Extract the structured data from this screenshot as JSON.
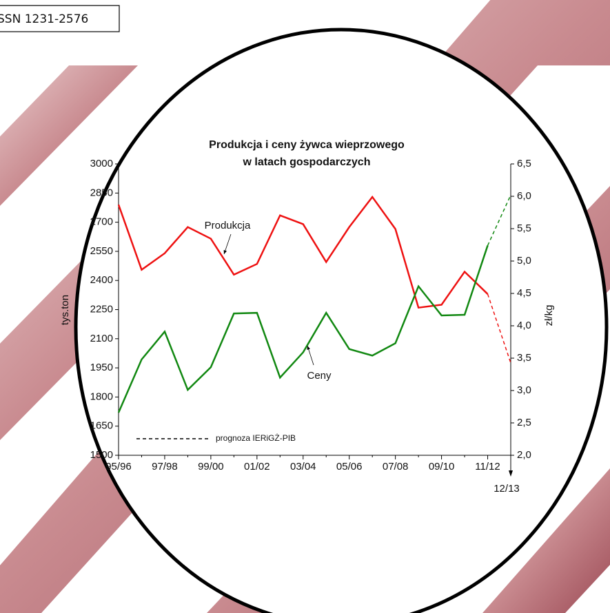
{
  "header": {
    "issn": "SSN 1231-2576"
  },
  "chart_data": {
    "type": "line",
    "title": [
      "Produkcja i ceny żywca wieprzowego",
      "w latach gospodarczych"
    ],
    "ylabel": "tys.ton",
    "y2label": "zł/kg",
    "categories": [
      "95/96",
      null,
      "97/98",
      null,
      "99/00",
      null,
      "01/02",
      null,
      "03/04",
      null,
      "05/06",
      null,
      "07/08",
      null,
      "09/10",
      null,
      "11/12",
      "12/13"
    ],
    "series": [
      {
        "name": "Produkcja",
        "color": "#ee1111",
        "values": [
          2790,
          2455,
          2540,
          2675,
          2615,
          2430,
          2485,
          2735,
          2690,
          2495,
          2675,
          2830,
          2665,
          2260,
          2275,
          2445,
          2330,
          1975
        ]
      },
      {
        "name": "Ceny",
        "color": "#118811",
        "axis": "y2",
        "values": [
          2.66,
          3.48,
          3.91,
          3.01,
          3.36,
          4.19,
          4.2,
          3.2,
          3.59,
          4.2,
          3.64,
          3.54,
          3.73,
          4.61,
          4.16,
          4.17,
          5.24,
          6.02
        ]
      }
    ],
    "forecast": {
      "label": "prognoza IERiGŻ-PIB",
      "from": "11/12"
    },
    "ylim": [
      1500,
      3000
    ],
    "yticks": [
      1500,
      1650,
      1800,
      1950,
      2100,
      2250,
      2400,
      2550,
      2700,
      2850,
      3000
    ],
    "y2lim": [
      2,
      6.5
    ],
    "y2ticks": [
      {
        "value": 2,
        "label": "2,0"
      },
      {
        "value": 2.5,
        "label": "2,5"
      },
      {
        "value": 3,
        "label": "3,0"
      },
      {
        "value": 3.5,
        "label": "3,5"
      },
      {
        "value": 4,
        "label": "4,0"
      },
      {
        "value": 4.5,
        "label": "4,5"
      },
      {
        "value": 5,
        "label": "5,0"
      },
      {
        "value": 5.5,
        "label": "5,5"
      },
      {
        "value": 6,
        "label": "6,0"
      },
      {
        "value": 6.5,
        "label": "6,5"
      }
    ],
    "grid": false
  }
}
